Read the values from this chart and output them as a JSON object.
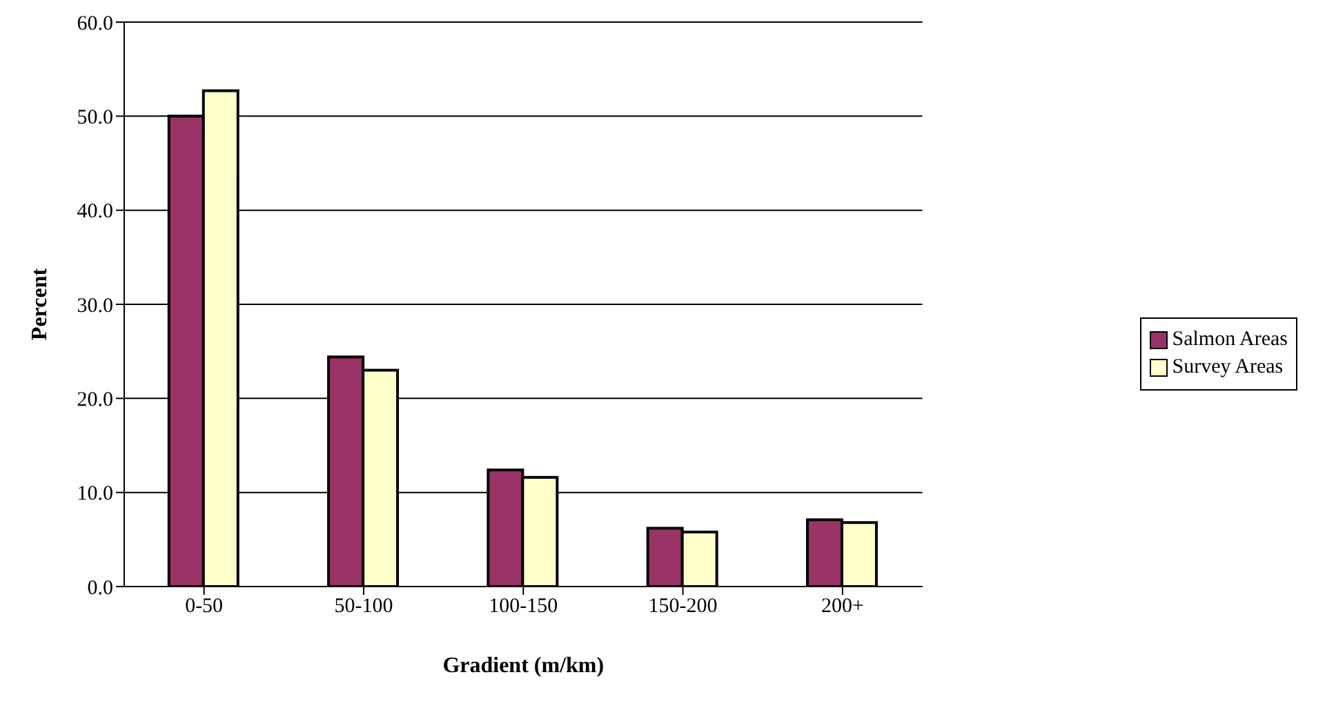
{
  "chart_data": {
    "type": "bar",
    "xlabel": "Gradient (m/km)",
    "ylabel": "Percent",
    "categories": [
      "0-50",
      "50-100",
      "100-150",
      "150-200",
      "200+"
    ],
    "series": [
      {
        "name": "Salmon Areas",
        "color": "#993366",
        "values": [
          50.0,
          24.4,
          12.4,
          6.2,
          7.1
        ]
      },
      {
        "name": "Survey Areas",
        "color": "#ffffcc",
        "values": [
          52.7,
          23.0,
          11.6,
          5.8,
          6.8
        ]
      }
    ],
    "ylim": [
      0,
      60
    ],
    "yticks": [
      {
        "value": 0,
        "label": "0.0"
      },
      {
        "value": 10,
        "label": "10.0"
      },
      {
        "value": 20,
        "label": "20.0"
      },
      {
        "value": 30,
        "label": "30.0"
      },
      {
        "value": 40,
        "label": "40.0"
      },
      {
        "value": 50,
        "label": "50.0"
      },
      {
        "value": 60,
        "label": "60.0"
      }
    ],
    "grid": "y",
    "legend": "right"
  }
}
